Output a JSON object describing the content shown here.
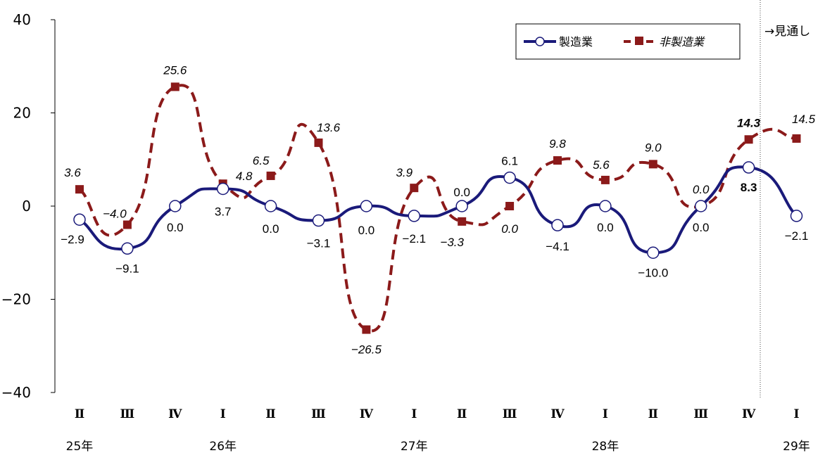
{
  "chart_data": {
    "type": "line",
    "categories": [
      "Ⅱ",
      "Ⅲ",
      "Ⅳ",
      "Ⅰ",
      "Ⅱ",
      "Ⅲ",
      "Ⅳ",
      "Ⅰ",
      "Ⅱ",
      "Ⅲ",
      "Ⅳ",
      "Ⅰ",
      "Ⅱ",
      "Ⅲ",
      "Ⅳ",
      "Ⅰ"
    ],
    "years": [
      {
        "label": "25年",
        "index": 0
      },
      {
        "label": "26年",
        "index": 3
      },
      {
        "label": "27年",
        "index": 7
      },
      {
        "label": "28年",
        "index": 11
      },
      {
        "label": "29年",
        "index": 15
      }
    ],
    "series": [
      {
        "name": "製造業",
        "color": "#1a1a7a",
        "marker": "circle",
        "values": [
          -2.9,
          -9.1,
          0.0,
          3.7,
          0.0,
          -3.1,
          0.0,
          -2.1,
          0.0,
          6.1,
          -4.1,
          0.0,
          -10.0,
          0.0,
          8.3,
          -2.1
        ],
        "labels": [
          "−2.9",
          "−9.1",
          "0.0",
          "3.7",
          "0.0",
          "−3.1",
          "0.0",
          "−2.1",
          "0.0",
          "6.1",
          "−4.1",
          "0.0",
          "−10.0",
          "0.0",
          "8.3",
          "−2.1"
        ]
      },
      {
        "name": "非製造業",
        "color": "#8b1a1a",
        "marker": "square",
        "values": [
          3.6,
          -4.0,
          25.6,
          4.8,
          6.5,
          13.6,
          -26.5,
          3.9,
          -3.3,
          0.0,
          9.8,
          5.6,
          9.0,
          0.0,
          14.3,
          14.5
        ],
        "labels": [
          "3.6",
          "−4.0",
          "25.6",
          "4.8",
          "6.5",
          "13.6",
          "−26.5",
          "3.9",
          "−3.3",
          "0.0",
          "9.8",
          "5.6",
          "9.0",
          "0.0",
          "14.3",
          "14.5"
        ]
      }
    ],
    "ylim": [
      -40,
      40
    ],
    "yticks": [
      40,
      20,
      0,
      -20,
      -40
    ],
    "ytick_labels": [
      "40",
      "20",
      "0",
      "−20",
      "−40"
    ],
    "forecast_note": "→見通し",
    "forecast_start_index": 15,
    "legend_position": "top-right",
    "grid": false
  }
}
